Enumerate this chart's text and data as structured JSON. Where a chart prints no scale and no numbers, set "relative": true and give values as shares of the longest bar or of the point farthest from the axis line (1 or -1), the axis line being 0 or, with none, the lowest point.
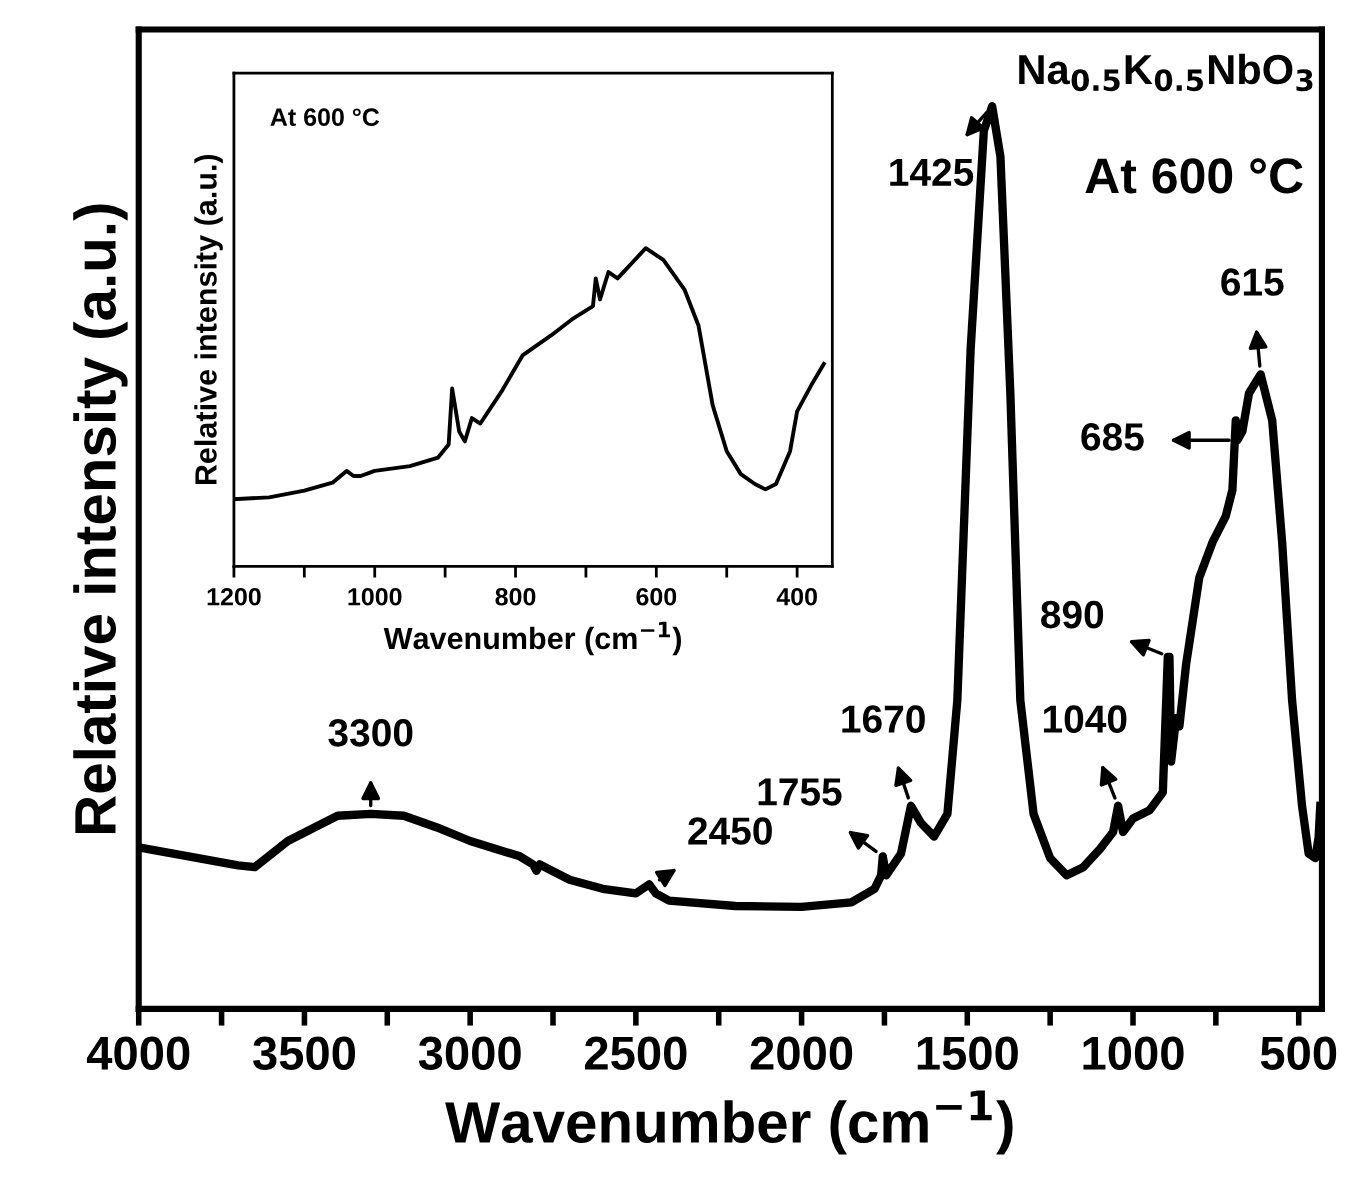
{
  "chart_data": [
    {
      "type": "line",
      "relative": true,
      "xlabel": "Wavenumber (cm$^{−1}$)",
      "ylabel": "Relative intensity (a.u.)",
      "xlim": [
        4000,
        430
      ],
      "xticks": [
        4000,
        {
          "value": 3750,
          "label": null
        },
        3500,
        {
          "value": 3250,
          "label": null
        },
        3000,
        {
          "value": 2750,
          "label": null
        },
        2500,
        {
          "value": 2250,
          "label": null
        },
        2000,
        {
          "value": 1750,
          "label": null
        },
        1500,
        {
          "value": 1250,
          "label": null
        },
        1000,
        {
          "value": 750,
          "label": null
        },
        500
      ],
      "x": [
        4000,
        3700,
        3650,
        3550,
        3400,
        3300,
        3200,
        3100,
        3000,
        2850,
        2810,
        2800,
        2790,
        2700,
        2600,
        2500,
        2460,
        2440,
        2400,
        2200,
        2000,
        1850,
        1780,
        1760,
        1755,
        1745,
        1700,
        1670,
        1640,
        1600,
        1560,
        1530,
        1490,
        1450,
        1425,
        1400,
        1370,
        1340,
        1300,
        1250,
        1200,
        1150,
        1100,
        1060,
        1045,
        1030,
        1000,
        950,
        910,
        895,
        890,
        885,
        870,
        860,
        840,
        800,
        760,
        720,
        700,
        690,
        685,
        670,
        650,
        615,
        580,
        550,
        520,
        490,
        470,
        450,
        440,
        435
      ],
      "series": [
        {
          "color": "#000000",
          "values": [
            0.179,
            0.159,
            0.157,
            0.186,
            0.214,
            0.216,
            0.214,
            0.201,
            0.186,
            0.169,
            0.16,
            0.153,
            0.16,
            0.143,
            0.133,
            0.128,
            0.138,
            0.128,
            0.12,
            0.114,
            0.113,
            0.118,
            0.133,
            0.148,
            0.169,
            0.148,
            0.172,
            0.225,
            0.206,
            0.191,
            0.216,
            0.342,
            0.73,
            0.973,
            1.0,
            0.944,
            0.681,
            0.342,
            0.216,
            0.167,
            0.148,
            0.157,
            0.177,
            0.196,
            0.225,
            0.196,
            0.211,
            0.22,
            0.24,
            0.39,
            0.39,
            0.274,
            0.322,
            0.313,
            0.381,
            0.478,
            0.517,
            0.546,
            0.575,
            0.652,
            0.63,
            0.64,
            0.682,
            0.703,
            0.652,
            0.517,
            0.342,
            0.225,
            0.172,
            0.167,
            0.19,
            0.225
          ]
        }
      ],
      "annotations": [
        {
          "text": "3300",
          "x": 3300,
          "y": 0.216
        },
        {
          "text": "2450",
          "x": 2450,
          "y": 0.138
        },
        {
          "text": "1755",
          "x": 1755,
          "y": 0.169
        },
        {
          "text": "1670",
          "x": 1670,
          "y": 0.225
        },
        {
          "text": "1425",
          "x": 1425,
          "y": 1.0
        },
        {
          "text": "1040",
          "x": 1045,
          "y": 0.225
        },
        {
          "text": "890",
          "x": 890,
          "y": 0.39
        },
        {
          "text": "685",
          "x": 685,
          "y": 0.63
        },
        {
          "text": "615",
          "x": 615,
          "y": 0.703
        },
        "Na$_{0.5}$K$_{0.5}$NbO$_{3}$",
        "At 600 °C"
      ]
    },
    {
      "type": "line",
      "relative": true,
      "xlabel": "Wavenumber (cm$^{−1}$)",
      "ylabel": "Relative intensity (a.u.)",
      "xlim": [
        1200,
        350
      ],
      "xticks": [
        1200,
        {
          "value": 1100,
          "label": null
        },
        1000,
        {
          "value": 900,
          "label": null
        },
        800,
        {
          "value": 700,
          "label": null
        },
        600,
        {
          "value": 500,
          "label": null
        },
        400
      ],
      "x": [
        1200,
        1150,
        1100,
        1060,
        1040,
        1030,
        1020,
        1000,
        950,
        910,
        895,
        890,
        880,
        872,
        862,
        850,
        820,
        790,
        750,
        720,
        690,
        686,
        680,
        668,
        655,
        615,
        590,
        560,
        540,
        520,
        500,
        480,
        460,
        445,
        430,
        410,
        400,
        380,
        362
      ],
      "series": [
        {
          "color": "#000000",
          "values": [
            0.211,
            0.217,
            0.238,
            0.263,
            0.3,
            0.284,
            0.284,
            0.3,
            0.315,
            0.342,
            0.383,
            0.559,
            0.424,
            0.393,
            0.466,
            0.449,
            0.549,
            0.663,
            0.725,
            0.776,
            0.818,
            0.905,
            0.839,
            0.925,
            0.905,
            1.0,
            0.963,
            0.87,
            0.756,
            0.507,
            0.362,
            0.29,
            0.259,
            0.242,
            0.259,
            0.362,
            0.487,
            0.569,
            0.636
          ]
        }
      ],
      "annotations": [
        "At 600 °C"
      ]
    }
  ]
}
